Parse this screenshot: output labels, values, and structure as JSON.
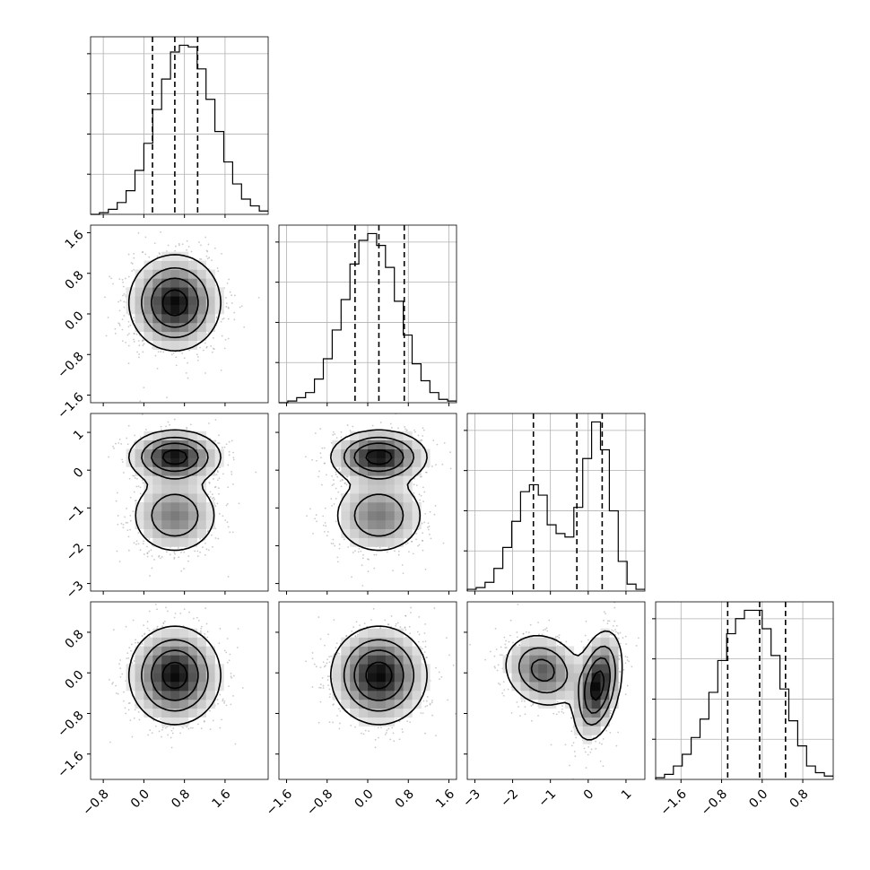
{
  "chart_data": {
    "type": "corner",
    "title": "",
    "grid": true,
    "parameters": [
      "",
      "",
      "",
      ""
    ],
    "axis_ranges": [
      [
        -1.05,
        2.45
      ],
      [
        -1.75,
        1.75
      ],
      [
        -3.2,
        1.5
      ],
      [
        -2.1,
        1.4
      ]
    ],
    "axis_ticks": [
      [
        -0.8,
        0.0,
        0.8,
        1.6
      ],
      [
        -1.6,
        -0.8,
        0.0,
        0.8,
        1.6
      ],
      [
        -3,
        -2,
        -1,
        0,
        1
      ],
      [
        -1.6,
        -0.8,
        0.0,
        0.8
      ]
    ],
    "tick_labels": [
      [
        "−0.8",
        "0.0",
        "0.8",
        "1.6"
      ],
      [
        "−1.6",
        "−0.8",
        "0.0",
        "0.8",
        "1.6"
      ],
      [
        "−3",
        "−2",
        "−1",
        "0",
        "1"
      ],
      [
        "−1.6",
        "−0.8",
        "0.0",
        "0.8"
      ]
    ],
    "quantiles": [
      [
        0.17,
        0.61,
        1.06
      ],
      [
        -0.25,
        0.22,
        0.72
      ],
      [
        -1.45,
        -0.3,
        0.37
      ],
      [
        -0.68,
        -0.05,
        0.46
      ]
    ],
    "histograms": [
      {
        "bin_edges_range": [
          -1.05,
          2.45
        ],
        "counts": [
          0,
          1,
          3,
          7,
          14,
          26,
          42,
          62,
          80,
          96,
          100,
          99,
          86,
          68,
          49,
          31,
          18,
          9,
          5,
          2
        ]
      },
      {
        "bin_edges_range": [
          -1.75,
          1.75
        ],
        "counts": [
          0,
          1,
          3,
          6,
          14,
          26,
          43,
          61,
          82,
          96,
          100,
          93,
          80,
          60,
          40,
          23,
          13,
          6,
          2,
          1
        ]
      },
      {
        "bin_edges_range": [
          -3.2,
          1.5
        ],
        "counts": [
          1,
          2,
          5,
          13,
          25,
          40,
          57,
          61,
          55,
          38,
          33,
          31,
          48,
          76,
          97,
          81,
          46,
          17,
          4,
          1
        ]
      },
      {
        "bin_edges_range": [
          -2.1,
          1.4
        ],
        "counts": [
          1,
          3,
          8,
          15,
          25,
          36,
          52,
          71,
          87,
          96,
          101,
          101,
          90,
          74,
          54,
          35,
          20,
          8,
          4,
          2
        ]
      }
    ],
    "joint": [
      {
        "row": 1,
        "col": 0,
        "components": [
          {
            "w": 1,
            "mx": 0.61,
            "my": 0.22,
            "sx": 0.42,
            "sy": 0.44,
            "rho": 0
          }
        ]
      },
      {
        "row": 2,
        "col": 0,
        "components": [
          {
            "w": 0.55,
            "mx": 0.61,
            "my": 0.35,
            "sx": 0.42,
            "sy": 0.33,
            "rho": 0
          },
          {
            "w": 0.45,
            "mx": 0.61,
            "my": -1.2,
            "sx": 0.42,
            "sy": 0.5,
            "rho": 0
          }
        ]
      },
      {
        "row": 2,
        "col": 1,
        "components": [
          {
            "w": 0.55,
            "mx": 0.22,
            "my": 0.35,
            "sx": 0.44,
            "sy": 0.33,
            "rho": 0
          },
          {
            "w": 0.45,
            "mx": 0.22,
            "my": -1.2,
            "sx": 0.44,
            "sy": 0.5,
            "rho": 0
          }
        ]
      },
      {
        "row": 3,
        "col": 0,
        "components": [
          {
            "w": 1,
            "mx": 0.61,
            "my": -0.05,
            "sx": 0.42,
            "sy": 0.45,
            "rho": 0
          }
        ]
      },
      {
        "row": 3,
        "col": 1,
        "components": [
          {
            "w": 1,
            "mx": 0.22,
            "my": -0.05,
            "sx": 0.44,
            "sy": 0.45,
            "rho": 0
          }
        ]
      },
      {
        "row": 3,
        "col": 2,
        "components": [
          {
            "w": 0.45,
            "mx": -1.2,
            "my": 0.05,
            "sx": 0.5,
            "sy": 0.35,
            "rho": -0.15
          },
          {
            "w": 0.55,
            "mx": 0.25,
            "my": -0.25,
            "sx": 0.3,
            "sy": 0.5,
            "rho": 0.35
          }
        ]
      }
    ]
  }
}
